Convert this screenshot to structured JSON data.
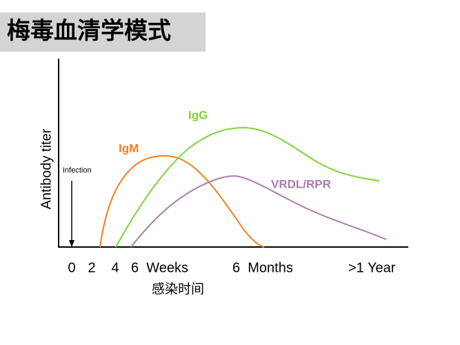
{
  "title": "梅毒血清学模式",
  "y_axis_label": "Antibody titer",
  "x_axis_title": "感染时间",
  "annotation": "Infection",
  "x_labels": [
    "0",
    "2",
    "4",
    "6  Weeks",
    "6  Months",
    ">1 Year"
  ],
  "curves": [
    {
      "label": "IgM",
      "color": "#f07f1f"
    },
    {
      "label": "IgG",
      "color": "#7ed43a"
    },
    {
      "label": "VRDL/RPR",
      "color": "#b07aac"
    }
  ]
}
